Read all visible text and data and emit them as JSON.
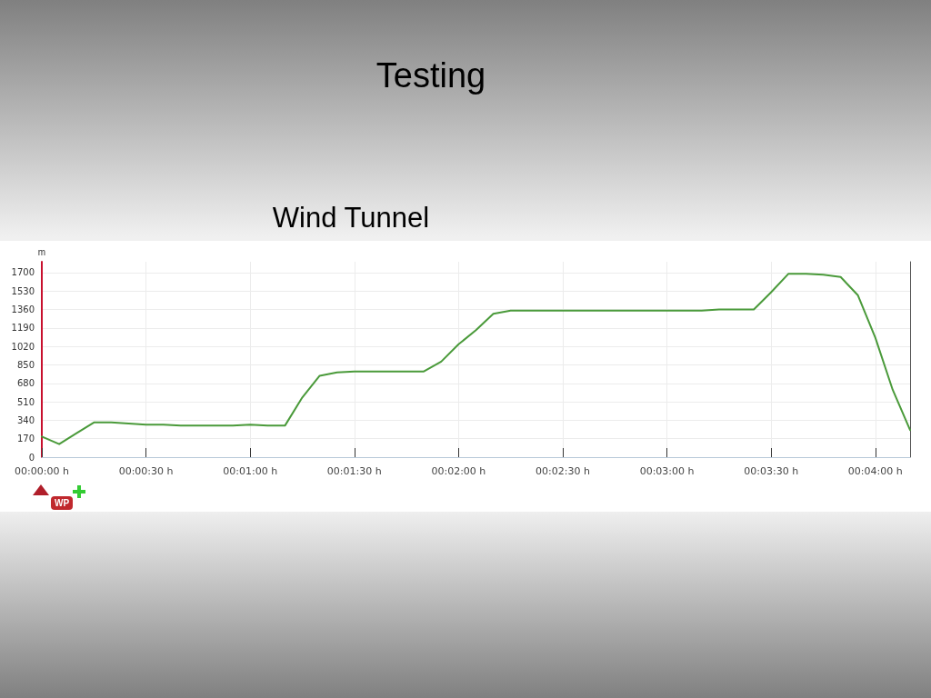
{
  "chart_data": {
    "type": "line",
    "title": "Testing",
    "subtitle": "Wind Tunnel",
    "ylabel": "m",
    "annotations": [
      "WP"
    ],
    "categories": [
      "00:00:00 h",
      null,
      null,
      null,
      null,
      null,
      "00:00:30 h",
      null,
      null,
      null,
      null,
      null,
      "00:01:00 h",
      null,
      null,
      null,
      null,
      null,
      "00:01:30 h",
      null,
      null,
      null,
      null,
      null,
      "00:02:00 h",
      null,
      null,
      null,
      null,
      null,
      "00:02:30 h",
      null,
      null,
      null,
      null,
      null,
      "00:03:00 h",
      null,
      null,
      null,
      null,
      null,
      "00:03:30 h",
      null,
      null,
      null,
      null,
      null,
      "00:04:00 h",
      null,
      null
    ],
    "series": [
      {
        "color": "#4a9a3a",
        "values": [
          190,
          120,
          220,
          320,
          320,
          310,
          300,
          300,
          290,
          290,
          290,
          290,
          300,
          290,
          290,
          550,
          750,
          780,
          790,
          790,
          790,
          790,
          790,
          880,
          1040,
          1170,
          1320,
          1350,
          1350,
          1350,
          1350,
          1350,
          1350,
          1350,
          1350,
          1350,
          1350,
          1350,
          1350,
          1360,
          1360,
          1360,
          1520,
          1690,
          1690,
          1680,
          1660,
          1490,
          1100,
          620,
          250
        ]
      }
    ],
    "ylim": [
      0,
      1800
    ],
    "yticks": [
      0,
      170,
      340,
      510,
      680,
      850,
      1020,
      1190,
      1360,
      1530,
      1700
    ],
    "grid": true,
    "marker": "none",
    "line_style": "solid"
  }
}
